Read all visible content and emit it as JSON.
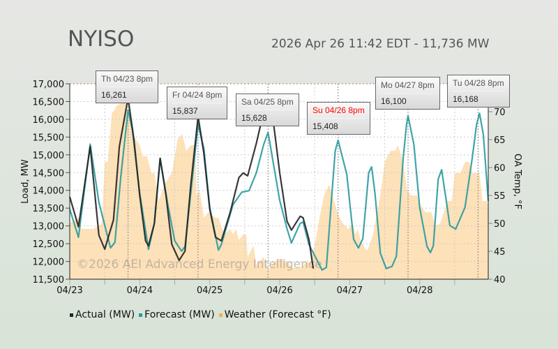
{
  "header": {
    "title": "NYISO",
    "subtitle": "2026 Apr 26 11:42 EDT - 11,736 MW"
  },
  "watermark": "©2026 AEI Advanced Energy Intelligence",
  "colors": {
    "actual": "#222222",
    "forecast": "#2a9a9e",
    "weather": "#fde1b8",
    "weekend_label": "#ff0000"
  },
  "tooltips": [
    {
      "date": "Th 04/23 8pm",
      "value": "16,261",
      "weekend": false
    },
    {
      "date": "Fr 04/24 8pm",
      "value": "15,837",
      "weekend": false
    },
    {
      "date": "Sa 04/25 8pm",
      "value": "15,628",
      "weekend": false
    },
    {
      "date": "Su 04/26 8pm",
      "value": "15,408",
      "weekend": true
    },
    {
      "date": "Mo 04/27 8pm",
      "value": "16,100",
      "weekend": false
    },
    {
      "date": "Tu 04/28 8pm",
      "value": "16,168",
      "weekend": false
    }
  ],
  "chart_data": {
    "type": "line",
    "ylabel": "Load, MW",
    "y2label": "OA Temp, °F",
    "ylim": [
      11500,
      17000
    ],
    "y2lim": [
      40,
      70
    ],
    "yticks": [
      "11,500",
      "12,000",
      "12,500",
      "13,000",
      "13,500",
      "14,000",
      "14,500",
      "15,000",
      "15,500",
      "16,000",
      "16,500",
      "17,000"
    ],
    "y2ticks": [
      "40",
      "45",
      "50",
      "55",
      "60",
      "65",
      "70"
    ],
    "xticks": [
      "04/23",
      "04/24",
      "04/25",
      "04/26",
      "04/27",
      "04/28"
    ],
    "grid": true,
    "legend_placement": "bottom",
    "legend": [
      "Actual (MW)",
      "Forecast (MW)",
      "Weather (Forecast °F)"
    ],
    "series": [
      {
        "name": "Actual (MW)",
        "type": "line",
        "points": [
          [
            "04/23 00:00",
            13818
          ],
          [
            "04/23 03:00",
            12975
          ],
          [
            "04/23 07:00",
            15232
          ],
          [
            "04/23 10:00",
            12738
          ],
          [
            "04/23 12:00",
            12345
          ],
          [
            "04/23 15:00",
            13170
          ],
          [
            "04/23 17:00",
            15230
          ],
          [
            "04/23 20:00",
            16600
          ],
          [
            "04/23 22:00",
            15430
          ],
          [
            "04/24 00:00",
            13860
          ],
          [
            "04/24 02:00",
            12580
          ],
          [
            "04/24 03:00",
            12440
          ],
          [
            "04/24 05:00",
            13070
          ],
          [
            "04/24 07:00",
            14900
          ],
          [
            "04/24 09:00",
            13860
          ],
          [
            "04/24 11:00",
            12480
          ],
          [
            "04/24 13:30",
            12030
          ],
          [
            "04/24 15:30",
            12290
          ],
          [
            "04/24 17:30",
            14150
          ],
          [
            "04/24 20:00",
            16080
          ],
          [
            "04/24 22:00",
            15040
          ],
          [
            "04/25 00:00",
            13470
          ],
          [
            "04/25 02:00",
            12680
          ],
          [
            "04/25 04:00",
            12580
          ],
          [
            "04/25 07:00",
            13380
          ],
          [
            "04/25 10:00",
            14360
          ],
          [
            "04/25 11:30",
            14490
          ],
          [
            "04/25 13:00",
            14410
          ],
          [
            "04/25 16:00",
            15330
          ],
          [
            "04/25 18:30",
            16210
          ],
          [
            "04/25 20:00",
            16300
          ],
          [
            "04/25 22:00",
            15800
          ],
          [
            "04/26 00:00",
            14500
          ],
          [
            "04/26 02:30",
            13130
          ],
          [
            "04/26 04:00",
            12880
          ],
          [
            "04/26 07:00",
            13270
          ],
          [
            "04/26 08:00",
            13230
          ],
          [
            "04/26 10:00",
            12620
          ],
          [
            "04/26 11:30",
            11800
          ]
        ]
      },
      {
        "name": "Forecast (MW)",
        "type": "line",
        "points": [
          [
            "04/23 00:00",
            13470
          ],
          [
            "04/23 03:00",
            12680
          ],
          [
            "04/23 07:00",
            15300
          ],
          [
            "04/23 10:00",
            13660
          ],
          [
            "04/23 14:00",
            12380
          ],
          [
            "04/23 15:30",
            12540
          ],
          [
            "04/23 17:30",
            14390
          ],
          [
            "04/23 20:00",
            16260
          ],
          [
            "04/23 21:30",
            15690
          ],
          [
            "04/24 00:00",
            13920
          ],
          [
            "04/24 03:00",
            12340
          ],
          [
            "04/24 05:00",
            13070
          ],
          [
            "04/24 07:00",
            14900
          ],
          [
            "04/24 09:30",
            13660
          ],
          [
            "04/24 12:00",
            12580
          ],
          [
            "04/24 14:20",
            12290
          ],
          [
            "04/24 15:30",
            12420
          ],
          [
            "04/24 17:30",
            13920
          ],
          [
            "04/24 20:00",
            15860
          ],
          [
            "04/24 22:00",
            15170
          ],
          [
            "04/25 00:00",
            13520
          ],
          [
            "04/25 03:00",
            12320
          ],
          [
            "04/25 04:00",
            12480
          ],
          [
            "04/25 08:00",
            13600
          ],
          [
            "04/25 11:00",
            13950
          ],
          [
            "04/25 13:30",
            13990
          ],
          [
            "04/25 16:00",
            14500
          ],
          [
            "04/25 18:30",
            15290
          ],
          [
            "04/25 20:00",
            15630
          ],
          [
            "04/26 00:00",
            13720
          ],
          [
            "04/26 02:30",
            12920
          ],
          [
            "04/26 04:00",
            12520
          ],
          [
            "04/26 07:00",
            13070
          ],
          [
            "04/26 08:00",
            13110
          ],
          [
            "04/26 10:00",
            12480
          ],
          [
            "04/26 14:30",
            11760
          ],
          [
            "04/26 16:00",
            11830
          ],
          [
            "04/26 19:00",
            15100
          ],
          [
            "04/26 20:00",
            15410
          ],
          [
            "04/26 23:00",
            14450
          ],
          [
            "04/27 01:20",
            12620
          ],
          [
            "04/27 03:00",
            12380
          ],
          [
            "04/27 04:30",
            12640
          ],
          [
            "04/27 06:30",
            14500
          ],
          [
            "04/27 07:30",
            14660
          ],
          [
            "04/27 08:40",
            13920
          ],
          [
            "04/27 10:30",
            12230
          ],
          [
            "04/27 12:30",
            11800
          ],
          [
            "04/27 14:30",
            11860
          ],
          [
            "04/27 16:00",
            12150
          ],
          [
            "04/27 18:20",
            14900
          ],
          [
            "04/27 19:30",
            15860
          ],
          [
            "04/27 20:00",
            16100
          ],
          [
            "04/27 22:00",
            15290
          ],
          [
            "04/28 00:00",
            13520
          ],
          [
            "04/28 02:30",
            12420
          ],
          [
            "04/28 03:40",
            12250
          ],
          [
            "04/28 04:40",
            12440
          ],
          [
            "04/28 06:20",
            14310
          ],
          [
            "04/28 07:30",
            14580
          ],
          [
            "04/28 08:50",
            13860
          ],
          [
            "04/28 10:20",
            13010
          ],
          [
            "04/28 12:20",
            12910
          ],
          [
            "04/28 15:30",
            13520
          ],
          [
            "04/28 18:00",
            14900
          ],
          [
            "04/28 19:30",
            15860
          ],
          [
            "04/28 20:30",
            16170
          ],
          [
            "04/28 21:50",
            15560
          ],
          [
            "04/28 23:30",
            13700
          ]
        ]
      },
      {
        "name": "Weather (Forecast °F)",
        "type": "area",
        "axis": "right",
        "points": [
          [
            "04/23 00:00",
            50
          ],
          [
            "04/23 03:00",
            51
          ],
          [
            "04/23 04:00",
            49
          ],
          [
            "04/23 08:00",
            49
          ],
          [
            "04/23 11:00",
            50
          ],
          [
            "04/23 12:00",
            61
          ],
          [
            "04/23 13:00",
            61
          ],
          [
            "04/23 14:30",
            70
          ],
          [
            "04/23 15:00",
            70
          ],
          [
            "04/23 16:00",
            71
          ],
          [
            "04/23 19:00",
            72
          ],
          [
            "04/23 21:30",
            66
          ],
          [
            "04/24 00:00",
            64
          ],
          [
            "04/24 01:00",
            62
          ],
          [
            "04/24 02:30",
            62
          ],
          [
            "04/24 04:00",
            59
          ],
          [
            "04/24 05:00",
            59
          ],
          [
            "04/24 06:30",
            54
          ],
          [
            "04/24 08:30",
            57
          ],
          [
            "04/24 11:00",
            59
          ],
          [
            "04/24 13:00",
            65
          ],
          [
            "04/24 14:30",
            66
          ],
          [
            "04/24 16:00",
            63
          ],
          [
            "04/24 17:30",
            64
          ],
          [
            "04/24 19:00",
            64
          ],
          [
            "04/24 19:30",
            55
          ],
          [
            "04/24 20:30",
            56
          ],
          [
            "04/24 22:00",
            51
          ],
          [
            "04/24 23:30",
            52
          ],
          [
            "04/25 02:00",
            51
          ],
          [
            "04/25 03:00",
            51
          ],
          [
            "04/25 05:00",
            48
          ],
          [
            "04/25 07:00",
            49
          ],
          [
            "04/25 08:00",
            48
          ],
          [
            "04/25 09:00",
            49
          ],
          [
            "04/25 10:00",
            47
          ],
          [
            "04/25 11:30",
            48
          ],
          [
            "04/25 12:30",
            48
          ],
          [
            "04/25 13:00",
            44
          ],
          [
            "04/25 15:00",
            46
          ],
          [
            "04/25 16:00",
            42.5
          ],
          [
            "04/25 18:30",
            44
          ],
          [
            "04/25 20:00",
            41.6
          ],
          [
            "04/25 22:00",
            43
          ],
          [
            "04/26 00:00",
            43.7
          ],
          [
            "04/26 03:00",
            43
          ],
          [
            "04/26 04:00",
            42
          ],
          [
            "04/26 07:00",
            42
          ],
          [
            "04/26 09:00",
            43
          ],
          [
            "04/26 10:30",
            43
          ],
          [
            "04/26 12:00",
            46
          ],
          [
            "04/26 13:40",
            51
          ],
          [
            "04/26 15:10",
            55
          ],
          [
            "04/26 17:00",
            57
          ],
          [
            "04/26 18:00",
            55
          ],
          [
            "04/26 20:00",
            51.6
          ],
          [
            "04/26 21:40",
            50
          ],
          [
            "04/26 23:30",
            49
          ],
          [
            "04/27 01:00",
            50
          ],
          [
            "04/27 02:00",
            48
          ],
          [
            "04/27 02:40",
            49
          ],
          [
            "04/27 04:00",
            46.6
          ],
          [
            "04/27 06:00",
            45
          ],
          [
            "04/27 08:00",
            48
          ],
          [
            "04/27 10:30",
            55
          ],
          [
            "04/27 12:00",
            61
          ],
          [
            "04/27 14:00",
            63
          ],
          [
            "04/27 15:30",
            63
          ],
          [
            "04/27 16:30",
            64
          ],
          [
            "04/27 18:00",
            61.6
          ],
          [
            "04/27 19:40",
            56
          ],
          [
            "04/27 21:00",
            55
          ],
          [
            "04/27 23:00",
            55
          ],
          [
            "04/28 00:30",
            53
          ],
          [
            "04/28 02:00",
            52
          ],
          [
            "04/28 04:00",
            52
          ],
          [
            "04/28 05:30",
            49.6
          ],
          [
            "04/28 07:00",
            50
          ],
          [
            "04/28 08:00",
            51.6
          ],
          [
            "04/28 09:30",
            54
          ],
          [
            "04/28 11:00",
            54
          ],
          [
            "04/28 12:00",
            59
          ],
          [
            "04/28 14:00",
            59
          ],
          [
            "04/28 15:30",
            61
          ],
          [
            "04/28 17:00",
            61
          ],
          [
            "04/28 18:00",
            59
          ],
          [
            "04/28 20:30",
            59
          ],
          [
            "04/28 21:30",
            54
          ],
          [
            "04/28 23:00",
            54
          ],
          [
            "04/28 23:30",
            53
          ]
        ]
      }
    ]
  }
}
